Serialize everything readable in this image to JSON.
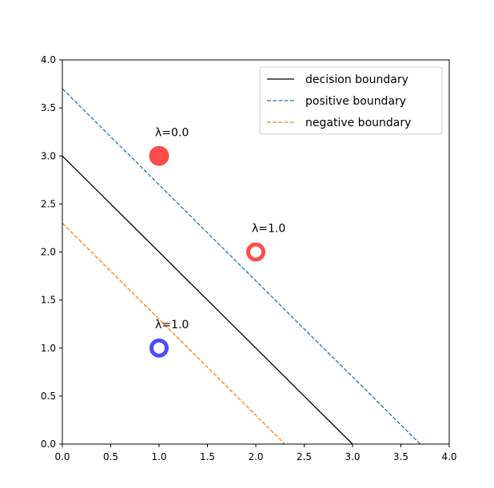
{
  "chart_data": {
    "type": "scatter",
    "title": "",
    "xlabel": "",
    "ylabel": "",
    "xlim": [
      0,
      4
    ],
    "ylim": [
      0,
      4
    ],
    "xticks": [
      "0.0",
      "0.5",
      "1.0",
      "1.5",
      "2.0",
      "2.5",
      "3.0",
      "3.5",
      "4.0"
    ],
    "yticks": [
      "0.0",
      "0.5",
      "1.0",
      "1.5",
      "2.0",
      "2.5",
      "3.0",
      "3.5",
      "4.0"
    ],
    "grid": false,
    "legend_position": "top-right",
    "lines": [
      {
        "name": "decision boundary",
        "style": "solid",
        "color": "#000000",
        "points": [
          [
            0,
            3.0
          ],
          [
            3.0,
            0
          ]
        ]
      },
      {
        "name": "positive boundary",
        "style": "dashed",
        "color": "#1f77b4",
        "points": [
          [
            0,
            3.7
          ],
          [
            3.7,
            0
          ]
        ]
      },
      {
        "name": "negative boundary",
        "style": "dashed",
        "color": "#ff7f0e",
        "points": [
          [
            0,
            2.3
          ],
          [
            2.3,
            0
          ]
        ]
      }
    ],
    "points": [
      {
        "x": 1.0,
        "y": 3.0,
        "color": "#ff0000",
        "filled": true,
        "label": "λ=0.0"
      },
      {
        "x": 2.0,
        "y": 2.0,
        "color": "#ff0000",
        "filled": false,
        "label": "λ=1.0"
      },
      {
        "x": 1.0,
        "y": 1.0,
        "color": "#0000ff",
        "filled": false,
        "label": "λ=1.0"
      }
    ]
  }
}
